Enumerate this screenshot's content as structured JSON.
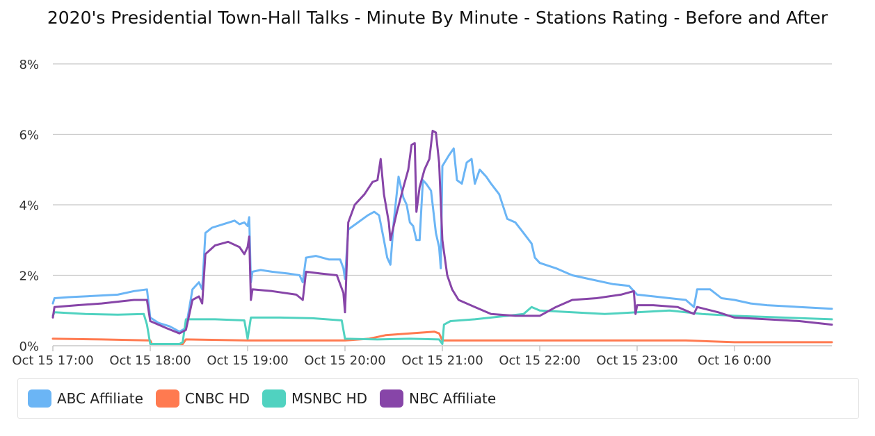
{
  "chart_data": {
    "type": "line",
    "title": "2020's Presidential Town-Hall Talks - Minute By Minute - Stations Rating - Before and After",
    "xlabel": "",
    "ylabel": "",
    "y_unit": "%",
    "ylim": [
      0,
      8
    ],
    "y_ticks": [
      0,
      2,
      4,
      6,
      8
    ],
    "y_tick_labels": [
      "0%",
      "2%",
      "4%",
      "6%",
      "8%"
    ],
    "xlim": [
      "2020-10-15 17:00",
      "2020-10-16 01:00"
    ],
    "x_ticks": [
      "2020-10-15 17:00",
      "2020-10-15 18:00",
      "2020-10-15 19:00",
      "2020-10-15 20:00",
      "2020-10-15 21:00",
      "2020-10-15 22:00",
      "2020-10-15 23:00",
      "2020-10-16 00:00"
    ],
    "x_tick_labels": [
      "Oct 15 17:00",
      "Oct 15 18:00",
      "Oct 15 19:00",
      "Oct 15 20:00",
      "Oct 15 21:00",
      "Oct 15 22:00",
      "Oct 15 23:00",
      "Oct 16 0:00"
    ],
    "grid": "horizontal",
    "legend_position": "bottom",
    "series": [
      {
        "name": "ABC Affiliate",
        "color": "#6bb5f5",
        "points": [
          [
            "2020-10-15 17:00",
            1.2
          ],
          [
            "2020-10-15 17:01",
            1.35
          ],
          [
            "2020-10-15 17:10",
            1.38
          ],
          [
            "2020-10-15 17:20",
            1.4
          ],
          [
            "2020-10-15 17:40",
            1.45
          ],
          [
            "2020-10-15 17:50",
            1.55
          ],
          [
            "2020-10-15 17:58",
            1.6
          ],
          [
            "2020-10-15 18:00",
            0.8
          ],
          [
            "2020-10-15 18:05",
            0.65
          ],
          [
            "2020-10-15 18:12",
            0.55
          ],
          [
            "2020-10-15 18:18",
            0.4
          ],
          [
            "2020-10-15 18:22",
            0.5
          ],
          [
            "2020-10-15 18:26",
            1.6
          ],
          [
            "2020-10-15 18:30",
            1.8
          ],
          [
            "2020-10-15 18:32",
            1.6
          ],
          [
            "2020-10-15 18:34",
            3.2
          ],
          [
            "2020-10-15 18:38",
            3.35
          ],
          [
            "2020-10-15 18:45",
            3.45
          ],
          [
            "2020-10-15 18:52",
            3.55
          ],
          [
            "2020-10-15 18:55",
            3.45
          ],
          [
            "2020-10-15 18:58",
            3.5
          ],
          [
            "2020-10-15 19:00",
            3.4
          ],
          [
            "2020-10-15 19:01",
            3.65
          ],
          [
            "2020-10-15 19:02",
            1.8
          ],
          [
            "2020-10-15 19:03",
            2.1
          ],
          [
            "2020-10-15 19:08",
            2.15
          ],
          [
            "2020-10-15 19:15",
            2.1
          ],
          [
            "2020-10-15 19:25",
            2.05
          ],
          [
            "2020-10-15 19:32",
            2.0
          ],
          [
            "2020-10-15 19:34",
            1.8
          ],
          [
            "2020-10-15 19:36",
            2.5
          ],
          [
            "2020-10-15 19:42",
            2.55
          ],
          [
            "2020-10-15 19:50",
            2.45
          ],
          [
            "2020-10-15 19:57",
            2.45
          ],
          [
            "2020-10-15 19:59",
            2.2
          ],
          [
            "2020-10-15 20:00",
            1.9
          ],
          [
            "2020-10-15 20:02",
            3.3
          ],
          [
            "2020-10-15 20:08",
            3.5
          ],
          [
            "2020-10-15 20:14",
            3.7
          ],
          [
            "2020-10-15 20:18",
            3.8
          ],
          [
            "2020-10-15 20:21",
            3.7
          ],
          [
            "2020-10-15 20:24",
            3.0
          ],
          [
            "2020-10-15 20:26",
            2.5
          ],
          [
            "2020-10-15 20:28",
            2.3
          ],
          [
            "2020-10-15 20:30",
            3.5
          ],
          [
            "2020-10-15 20:33",
            4.8
          ],
          [
            "2020-10-15 20:36",
            4.2
          ],
          [
            "2020-10-15 20:38",
            4.0
          ],
          [
            "2020-10-15 20:40",
            3.5
          ],
          [
            "2020-10-15 20:42",
            3.4
          ],
          [
            "2020-10-15 20:44",
            3.0
          ],
          [
            "2020-10-15 20:46",
            3.0
          ],
          [
            "2020-10-15 20:48",
            4.7
          ],
          [
            "2020-10-15 20:50",
            4.6
          ],
          [
            "2020-10-15 20:53",
            4.4
          ],
          [
            "2020-10-15 20:56",
            3.2
          ],
          [
            "2020-10-15 20:58",
            2.8
          ],
          [
            "2020-10-15 20:59",
            2.2
          ],
          [
            "2020-10-15 21:00",
            5.1
          ],
          [
            "2020-10-15 21:04",
            5.4
          ],
          [
            "2020-10-15 21:07",
            5.6
          ],
          [
            "2020-10-15 21:09",
            4.7
          ],
          [
            "2020-10-15 21:12",
            4.6
          ],
          [
            "2020-10-15 21:15",
            5.2
          ],
          [
            "2020-10-15 21:18",
            5.3
          ],
          [
            "2020-10-15 21:20",
            4.6
          ],
          [
            "2020-10-15 21:23",
            5.0
          ],
          [
            "2020-10-15 21:27",
            4.8
          ],
          [
            "2020-10-15 21:30",
            4.6
          ],
          [
            "2020-10-15 21:35",
            4.3
          ],
          [
            "2020-10-15 21:40",
            3.6
          ],
          [
            "2020-10-15 21:45",
            3.5
          ],
          [
            "2020-10-15 21:50",
            3.2
          ],
          [
            "2020-10-15 21:55",
            2.9
          ],
          [
            "2020-10-15 21:57",
            2.5
          ],
          [
            "2020-10-15 22:00",
            2.35
          ],
          [
            "2020-10-15 22:10",
            2.2
          ],
          [
            "2020-10-15 22:20",
            2.0
          ],
          [
            "2020-10-15 22:30",
            1.9
          ],
          [
            "2020-10-15 22:45",
            1.75
          ],
          [
            "2020-10-15 22:55",
            1.7
          ],
          [
            "2020-10-15 22:58",
            1.55
          ],
          [
            "2020-10-15 23:00",
            1.45
          ],
          [
            "2020-10-15 23:10",
            1.4
          ],
          [
            "2020-10-15 23:20",
            1.35
          ],
          [
            "2020-10-15 23:30",
            1.3
          ],
          [
            "2020-10-15 23:35",
            1.1
          ],
          [
            "2020-10-15 23:37",
            1.6
          ],
          [
            "2020-10-15 23:45",
            1.6
          ],
          [
            "2020-10-15 23:52",
            1.35
          ],
          [
            "2020-10-16 00:00",
            1.3
          ],
          [
            "2020-10-16 00:10",
            1.2
          ],
          [
            "2020-10-16 00:20",
            1.15
          ],
          [
            "2020-10-16 00:40",
            1.1
          ],
          [
            "2020-10-16 01:00",
            1.05
          ]
        ]
      },
      {
        "name": "CNBC HD",
        "color": "#ff7a50",
        "points": [
          [
            "2020-10-15 17:00",
            0.2
          ],
          [
            "2020-10-15 17:30",
            0.18
          ],
          [
            "2020-10-15 18:00",
            0.15
          ],
          [
            "2020-10-15 18:01",
            0.05
          ],
          [
            "2020-10-15 18:20",
            0.05
          ],
          [
            "2020-10-15 18:22",
            0.18
          ],
          [
            "2020-10-15 19:00",
            0.15
          ],
          [
            "2020-10-15 19:30",
            0.15
          ],
          [
            "2020-10-15 20:00",
            0.15
          ],
          [
            "2020-10-15 20:15",
            0.2
          ],
          [
            "2020-10-15 20:25",
            0.3
          ],
          [
            "2020-10-15 20:40",
            0.35
          ],
          [
            "2020-10-15 20:55",
            0.4
          ],
          [
            "2020-10-15 20:58",
            0.35
          ],
          [
            "2020-10-15 21:00",
            0.15
          ],
          [
            "2020-10-15 21:30",
            0.15
          ],
          [
            "2020-10-15 22:00",
            0.15
          ],
          [
            "2020-10-15 22:30",
            0.15
          ],
          [
            "2020-10-15 23:00",
            0.15
          ],
          [
            "2020-10-15 23:30",
            0.15
          ],
          [
            "2020-10-16 00:00",
            0.1
          ],
          [
            "2020-10-16 01:00",
            0.1
          ]
        ]
      },
      {
        "name": "MSNBC HD",
        "color": "#50d2c0",
        "points": [
          [
            "2020-10-15 17:00",
            0.85
          ],
          [
            "2020-10-15 17:01",
            0.95
          ],
          [
            "2020-10-15 17:20",
            0.9
          ],
          [
            "2020-10-15 17:40",
            0.88
          ],
          [
            "2020-10-15 17:56",
            0.9
          ],
          [
            "2020-10-15 17:58",
            0.6
          ],
          [
            "2020-10-15 18:00",
            0.05
          ],
          [
            "2020-10-15 18:18",
            0.05
          ],
          [
            "2020-10-15 18:20",
            0.1
          ],
          [
            "2020-10-15 18:22",
            0.75
          ],
          [
            "2020-10-15 18:40",
            0.75
          ],
          [
            "2020-10-15 18:58",
            0.72
          ],
          [
            "2020-10-15 19:00",
            0.2
          ],
          [
            "2020-10-15 19:02",
            0.8
          ],
          [
            "2020-10-15 19:20",
            0.8
          ],
          [
            "2020-10-15 19:40",
            0.78
          ],
          [
            "2020-10-15 19:58",
            0.72
          ],
          [
            "2020-10-15 20:00",
            0.2
          ],
          [
            "2020-10-15 20:20",
            0.18
          ],
          [
            "2020-10-15 20:40",
            0.2
          ],
          [
            "2020-10-15 20:58",
            0.18
          ],
          [
            "2020-10-15 21:00",
            0.05
          ],
          [
            "2020-10-15 21:01",
            0.6
          ],
          [
            "2020-10-15 21:05",
            0.7
          ],
          [
            "2020-10-15 21:20",
            0.75
          ],
          [
            "2020-10-15 21:40",
            0.85
          ],
          [
            "2020-10-15 21:50",
            0.9
          ],
          [
            "2020-10-15 21:55",
            1.1
          ],
          [
            "2020-10-15 22:00",
            1.0
          ],
          [
            "2020-10-15 22:20",
            0.95
          ],
          [
            "2020-10-15 22:40",
            0.9
          ],
          [
            "2020-10-15 23:00",
            0.95
          ],
          [
            "2020-10-15 23:20",
            1.0
          ],
          [
            "2020-10-15 23:40",
            0.9
          ],
          [
            "2020-10-16 00:00",
            0.85
          ],
          [
            "2020-10-16 00:30",
            0.8
          ],
          [
            "2020-10-16 01:00",
            0.75
          ]
        ]
      },
      {
        "name": "NBC Affiliate",
        "color": "#8745a8",
        "points": [
          [
            "2020-10-15 17:00",
            0.8
          ],
          [
            "2020-10-15 17:01",
            1.1
          ],
          [
            "2020-10-15 17:15",
            1.15
          ],
          [
            "2020-10-15 17:30",
            1.2
          ],
          [
            "2020-10-15 17:50",
            1.3
          ],
          [
            "2020-10-15 17:58",
            1.3
          ],
          [
            "2020-10-15 18:00",
            0.7
          ],
          [
            "2020-10-15 18:10",
            0.5
          ],
          [
            "2020-10-15 18:18",
            0.35
          ],
          [
            "2020-10-15 18:22",
            0.45
          ],
          [
            "2020-10-15 18:26",
            1.3
          ],
          [
            "2020-10-15 18:30",
            1.4
          ],
          [
            "2020-10-15 18:32",
            1.2
          ],
          [
            "2020-10-15 18:34",
            2.6
          ],
          [
            "2020-10-15 18:40",
            2.85
          ],
          [
            "2020-10-15 18:48",
            2.95
          ],
          [
            "2020-10-15 18:55",
            2.8
          ],
          [
            "2020-10-15 18:58",
            2.6
          ],
          [
            "2020-10-15 19:00",
            2.8
          ],
          [
            "2020-10-15 19:01",
            3.1
          ],
          [
            "2020-10-15 19:02",
            1.3
          ],
          [
            "2020-10-15 19:03",
            1.6
          ],
          [
            "2020-10-15 19:15",
            1.55
          ],
          [
            "2020-10-15 19:30",
            1.45
          ],
          [
            "2020-10-15 19:34",
            1.3
          ],
          [
            "2020-10-15 19:36",
            2.1
          ],
          [
            "2020-10-15 19:45",
            2.05
          ],
          [
            "2020-10-15 19:55",
            2.0
          ],
          [
            "2020-10-15 19:59",
            1.5
          ],
          [
            "2020-10-15 20:00",
            0.95
          ],
          [
            "2020-10-15 20:02",
            3.5
          ],
          [
            "2020-10-15 20:06",
            4.0
          ],
          [
            "2020-10-15 20:12",
            4.3
          ],
          [
            "2020-10-15 20:17",
            4.65
          ],
          [
            "2020-10-15 20:20",
            4.7
          ],
          [
            "2020-10-15 20:22",
            5.3
          ],
          [
            "2020-10-15 20:24",
            4.3
          ],
          [
            "2020-10-15 20:27",
            3.5
          ],
          [
            "2020-10-15 20:28",
            3.0
          ],
          [
            "2020-10-15 20:32",
            3.8
          ],
          [
            "2020-10-15 20:36",
            4.5
          ],
          [
            "2020-10-15 20:39",
            5.0
          ],
          [
            "2020-10-15 20:41",
            5.7
          ],
          [
            "2020-10-15 20:43",
            5.75
          ],
          [
            "2020-10-15 20:44",
            3.8
          ],
          [
            "2020-10-15 20:46",
            4.5
          ],
          [
            "2020-10-15 20:49",
            5.0
          ],
          [
            "2020-10-15 20:52",
            5.3
          ],
          [
            "2020-10-15 20:54",
            6.1
          ],
          [
            "2020-10-15 20:56",
            6.05
          ],
          [
            "2020-10-15 20:58",
            5.2
          ],
          [
            "2020-10-15 21:00",
            3.0
          ],
          [
            "2020-10-15 21:03",
            2.0
          ],
          [
            "2020-10-15 21:06",
            1.6
          ],
          [
            "2020-10-15 21:10",
            1.3
          ],
          [
            "2020-10-15 21:20",
            1.1
          ],
          [
            "2020-10-15 21:30",
            0.9
          ],
          [
            "2020-10-15 21:45",
            0.85
          ],
          [
            "2020-10-15 22:00",
            0.85
          ],
          [
            "2020-10-15 22:10",
            1.1
          ],
          [
            "2020-10-15 22:20",
            1.3
          ],
          [
            "2020-10-15 22:35",
            1.35
          ],
          [
            "2020-10-15 22:50",
            1.45
          ],
          [
            "2020-10-15 22:58",
            1.55
          ],
          [
            "2020-10-15 22:59",
            0.9
          ],
          [
            "2020-10-15 23:00",
            1.15
          ],
          [
            "2020-10-15 23:10",
            1.15
          ],
          [
            "2020-10-15 23:25",
            1.1
          ],
          [
            "2020-10-15 23:35",
            0.9
          ],
          [
            "2020-10-15 23:37",
            1.1
          ],
          [
            "2020-10-15 23:50",
            0.95
          ],
          [
            "2020-10-16 00:00",
            0.8
          ],
          [
            "2020-10-16 00:20",
            0.75
          ],
          [
            "2020-10-16 00:40",
            0.7
          ],
          [
            "2020-10-16 01:00",
            0.6
          ]
        ]
      }
    ]
  }
}
